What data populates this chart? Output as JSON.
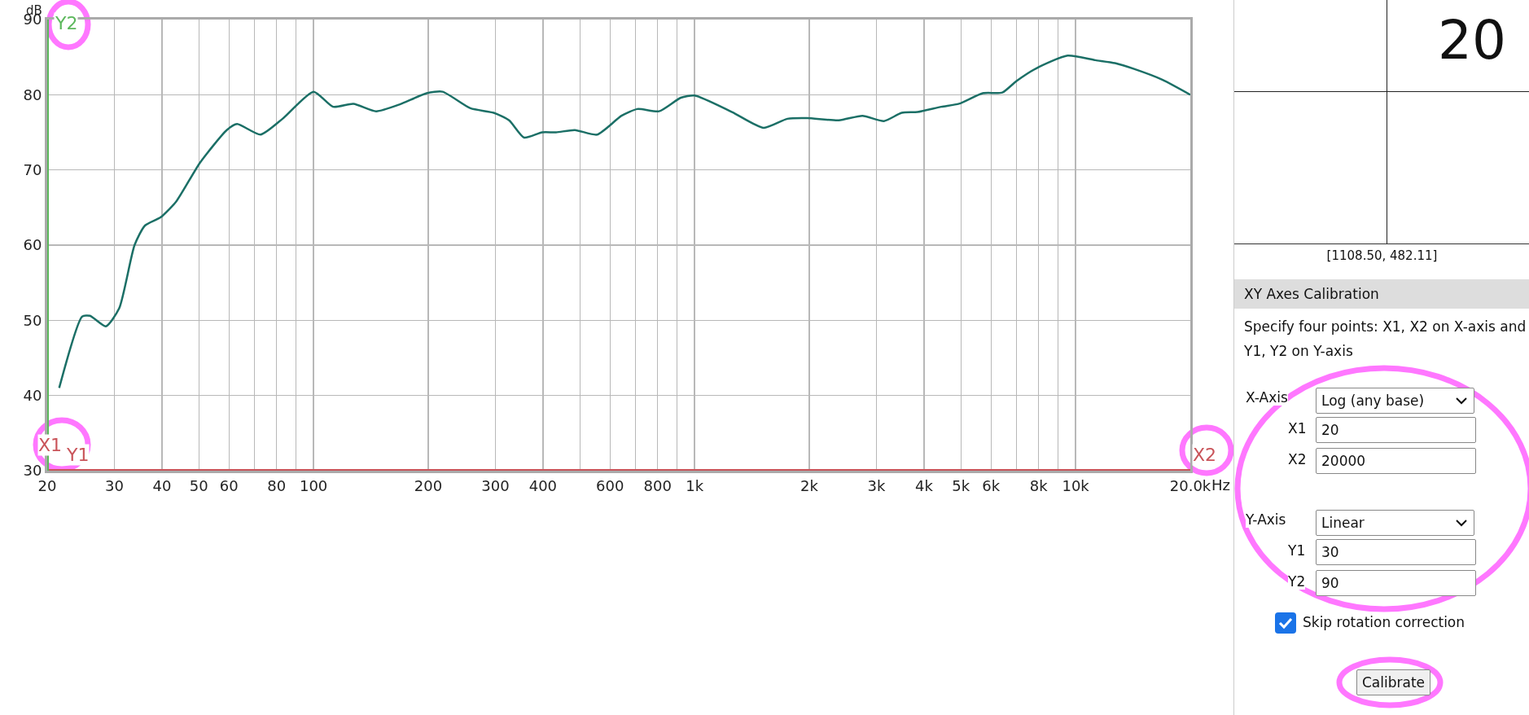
{
  "chart_data": [
    {
      "type": "line",
      "ylabel": "dB",
      "x": [
        21.5,
        24.7,
        25.9,
        28.5,
        30.9,
        33.9,
        36.1,
        39.7,
        43.6,
        50.4,
        59.2,
        63,
        72.6,
        82.9,
        100,
        112.6,
        127.2,
        146,
        168,
        198,
        218,
        258,
        297,
        326,
        357,
        398,
        433,
        485,
        555,
        643,
        708,
        807,
        920,
        1000,
        1254,
        1518,
        1752,
        1974,
        2390,
        2758,
        3142,
        3496,
        3849,
        4443,
        4944,
        5704,
        6423,
        6985,
        7877,
        9525,
        11268,
        12693,
        14290,
        16880,
        20000
      ],
      "series": [
        {
          "color": "#1b6f66",
          "values": [
            41,
            50.5,
            50.6,
            49.2,
            51.6,
            60,
            62.6,
            63.7,
            65.8,
            71,
            75.3,
            76.1,
            74.7,
            76.8,
            80.4,
            78.4,
            78.8,
            77.8,
            78.7,
            80.2,
            80.4,
            78.2,
            77.6,
            76.6,
            74.3,
            75,
            75,
            75.3,
            74.7,
            77.2,
            78.1,
            77.8,
            79.6,
            79.9,
            77.7,
            75.6,
            76.8,
            76.9,
            76.6,
            77.2,
            76.5,
            77.6,
            77.7,
            78.4,
            78.8,
            80.2,
            80.3,
            81.8,
            83.5,
            85.2,
            84.6,
            84.2,
            83.4,
            82,
            80
          ]
        }
      ],
      "log": "x",
      "xlim": [
        20,
        20000
      ],
      "xticks": [
        20,
        30,
        40,
        50,
        60,
        {
          "value": 70,
          "label": null
        },
        80,
        {
          "value": 90,
          "label": null
        },
        100,
        200,
        300,
        400,
        {
          "value": 500,
          "label": null
        },
        600,
        {
          "value": 700,
          "label": null
        },
        800,
        {
          "value": 900,
          "label": null
        },
        {
          "value": 1000,
          "label": "1k"
        },
        {
          "value": 2000,
          "label": "2k"
        },
        {
          "value": 3000,
          "label": "3k"
        },
        {
          "value": 4000,
          "label": "4k"
        },
        {
          "value": 5000,
          "label": "5k"
        },
        {
          "value": 6000,
          "label": "6k"
        },
        {
          "value": 7000,
          "label": null
        },
        {
          "value": 8000,
          "label": "8k"
        },
        {
          "value": 9000,
          "label": null
        },
        {
          "value": 10000,
          "label": "10k"
        },
        {
          "value": 20000,
          "label": "20.0k"
        }
      ],
      "xlabel": "Hz",
      "ylim": [
        30,
        90
      ],
      "yticks": [
        30,
        40,
        50,
        60,
        70,
        80,
        90
      ],
      "grid": true,
      "marker": "none",
      "line_style": "solid",
      "ref_lines": [
        {
          "axis": "y",
          "value": 30,
          "color": "#c9545a"
        },
        {
          "axis": "x",
          "value": 20,
          "color": "#5cb85c"
        }
      ],
      "annotations": [
        "X1",
        "Y1",
        "X2",
        "Y2"
      ]
    },
    {
      "type": "other",
      "title": "XY Axes Calibration",
      "annotations": [
        "20",
        "[1108.50, 482.11]",
        "Specify four points: X1, X2 on X-axis and Y1, Y2 on Y-axis",
        "X-Axis",
        "Log (any base)",
        "X1",
        "20",
        "X2",
        "20000",
        "Y-Axis",
        "Linear",
        "Y1",
        "30",
        "Y2",
        "90",
        "Skip rotation correction",
        "Calibrate"
      ]
    }
  ]
}
